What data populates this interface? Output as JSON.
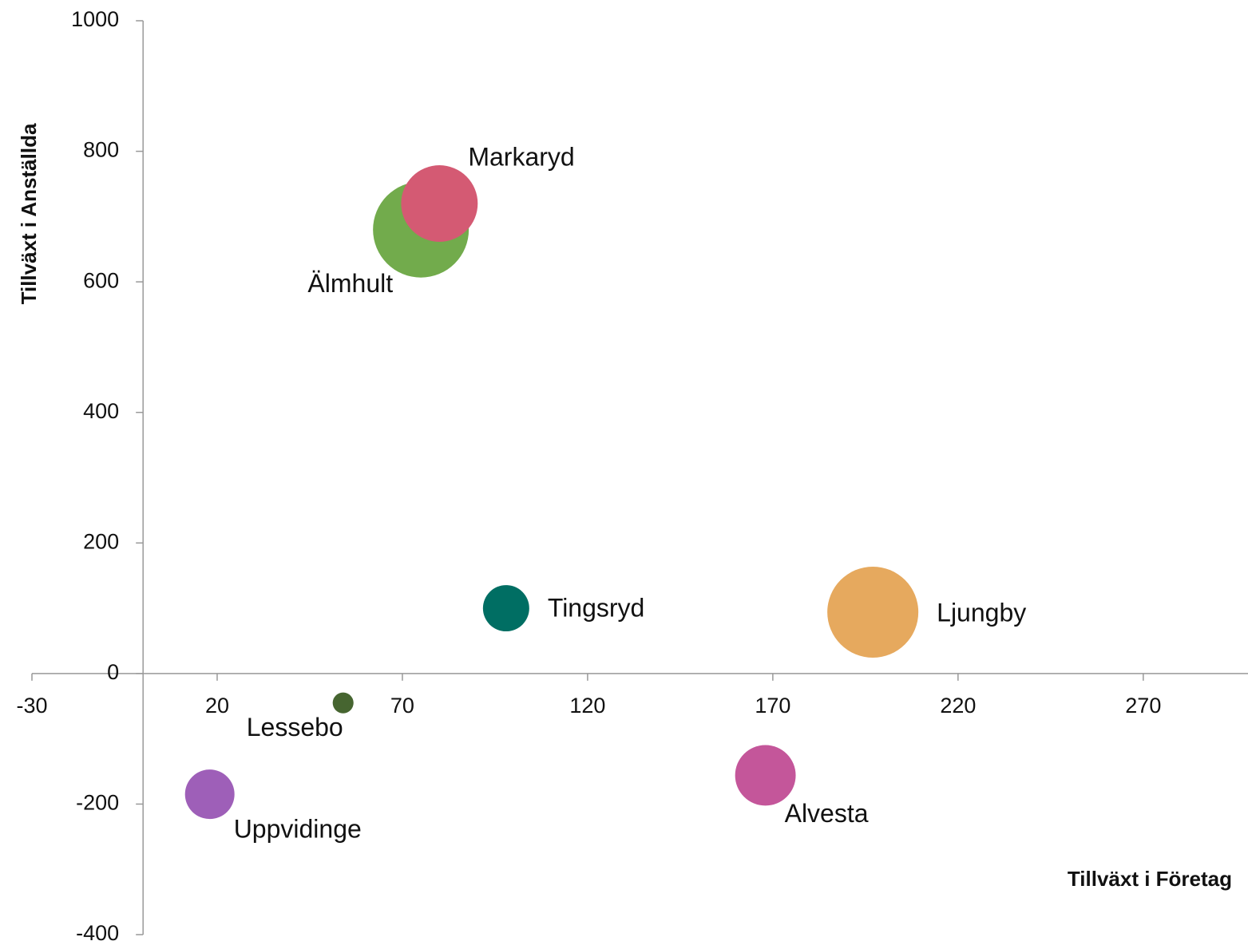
{
  "chart_data": {
    "type": "bubble",
    "xlabel": "Tillväxt i Företag",
    "ylabel": "Tillväxt i Anställda",
    "xlim": [
      -30,
      300
    ],
    "xticks": [
      -30,
      20,
      70,
      120,
      170,
      220,
      270
    ],
    "ylim": [
      -400,
      1000
    ],
    "yticks": [
      -400,
      -200,
      0,
      200,
      400,
      600,
      800,
      1000
    ],
    "series": [
      {
        "name": "Älmhult",
        "color": "#72ab4c",
        "x": [
          75
        ],
        "values": [
          680
        ],
        "sizes": [
          3600
        ]
      },
      {
        "name": "Markaryd",
        "color": "#d45a73",
        "x": [
          80
        ],
        "values": [
          720
        ],
        "sizes": [
          2300
        ]
      },
      {
        "name": "Tingsryd",
        "color": "#006e63",
        "x": [
          98
        ],
        "values": [
          100
        ],
        "sizes": [
          840
        ]
      },
      {
        "name": "Ljungby",
        "color": "#e6a95e",
        "x": [
          197
        ],
        "values": [
          94
        ],
        "sizes": [
          3250
        ]
      },
      {
        "name": "Lessebo",
        "color": "#466530",
        "x": [
          54
        ],
        "values": [
          -45
        ],
        "sizes": [
          170
        ]
      },
      {
        "name": "Uppvidinge",
        "color": "#9e5fb8",
        "x": [
          18
        ],
        "values": [
          -185
        ],
        "sizes": [
          960
        ]
      },
      {
        "name": "Alvesta",
        "color": "#c4569a",
        "x": [
          168
        ],
        "values": [
          -156
        ],
        "sizes": [
          1440
        ]
      }
    ]
  }
}
